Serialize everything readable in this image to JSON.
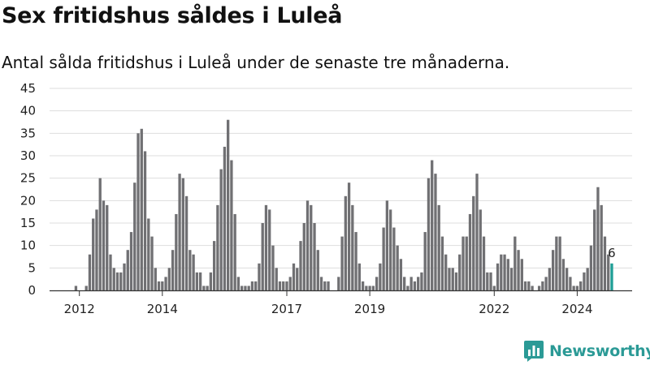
{
  "header": {
    "title": "Sex fritidshus såldes i Luleå",
    "subtitle": "Antal sålda fritidshus i Luleå under de senaste tre månaderna."
  },
  "brand": {
    "name": "Newsworthy",
    "icon": "bar-chart-speech-bubble-icon",
    "color": "#2b9a96"
  },
  "chart_data": {
    "type": "bar",
    "title": "Sex fritidshus såldes i Luleå",
    "subtitle": "Antal sålda fritidshus i Luleå under de senaste tre månaderna.",
    "ylim": [
      0,
      45
    ],
    "yticks": [
      0,
      5,
      10,
      15,
      20,
      25,
      30,
      35,
      40,
      45
    ],
    "xticks": [
      {
        "label": "2012",
        "index": 8
      },
      {
        "label": "2014",
        "index": 32
      },
      {
        "label": "2017",
        "index": 68
      },
      {
        "label": "2019",
        "index": 92
      },
      {
        "label": "2022",
        "index": 128
      },
      {
        "label": "2024",
        "index": 152
      }
    ],
    "grid": true,
    "bar_color": "#707073",
    "highlight_color": "#1f9e96",
    "highlight_index": 162,
    "data_label": {
      "index": 162,
      "text": "6"
    },
    "values": [
      0,
      0,
      0,
      0,
      0,
      0,
      0,
      1,
      0,
      0,
      1,
      8,
      16,
      18,
      25,
      20,
      19,
      8,
      5,
      4,
      4,
      6,
      9,
      13,
      24,
      35,
      36,
      31,
      16,
      12,
      5,
      2,
      2,
      3,
      5,
      9,
      17,
      26,
      25,
      21,
      9,
      8,
      4,
      4,
      1,
      1,
      4,
      11,
      19,
      27,
      32,
      38,
      29,
      17,
      3,
      1,
      1,
      1,
      2,
      2,
      6,
      15,
      19,
      18,
      10,
      5,
      2,
      2,
      2,
      3,
      6,
      5,
      11,
      15,
      20,
      19,
      15,
      9,
      3,
      2,
      2,
      0,
      0,
      3,
      12,
      21,
      24,
      19,
      13,
      6,
      2,
      1,
      1,
      1,
      3,
      6,
      14,
      20,
      18,
      14,
      10,
      7,
      3,
      1,
      3,
      2,
      3,
      4,
      13,
      25,
      29,
      26,
      19,
      12,
      8,
      5,
      5,
      4,
      8,
      12,
      12,
      17,
      21,
      26,
      18,
      12,
      4,
      4,
      1,
      6,
      8,
      8,
      7,
      5,
      12,
      9,
      7,
      2,
      2,
      1,
      0,
      1,
      2,
      3,
      5,
      9,
      12,
      12,
      7,
      5,
      3,
      1,
      1,
      2,
      4,
      5,
      10,
      18,
      23,
      19,
      12,
      8,
      6
    ]
  }
}
